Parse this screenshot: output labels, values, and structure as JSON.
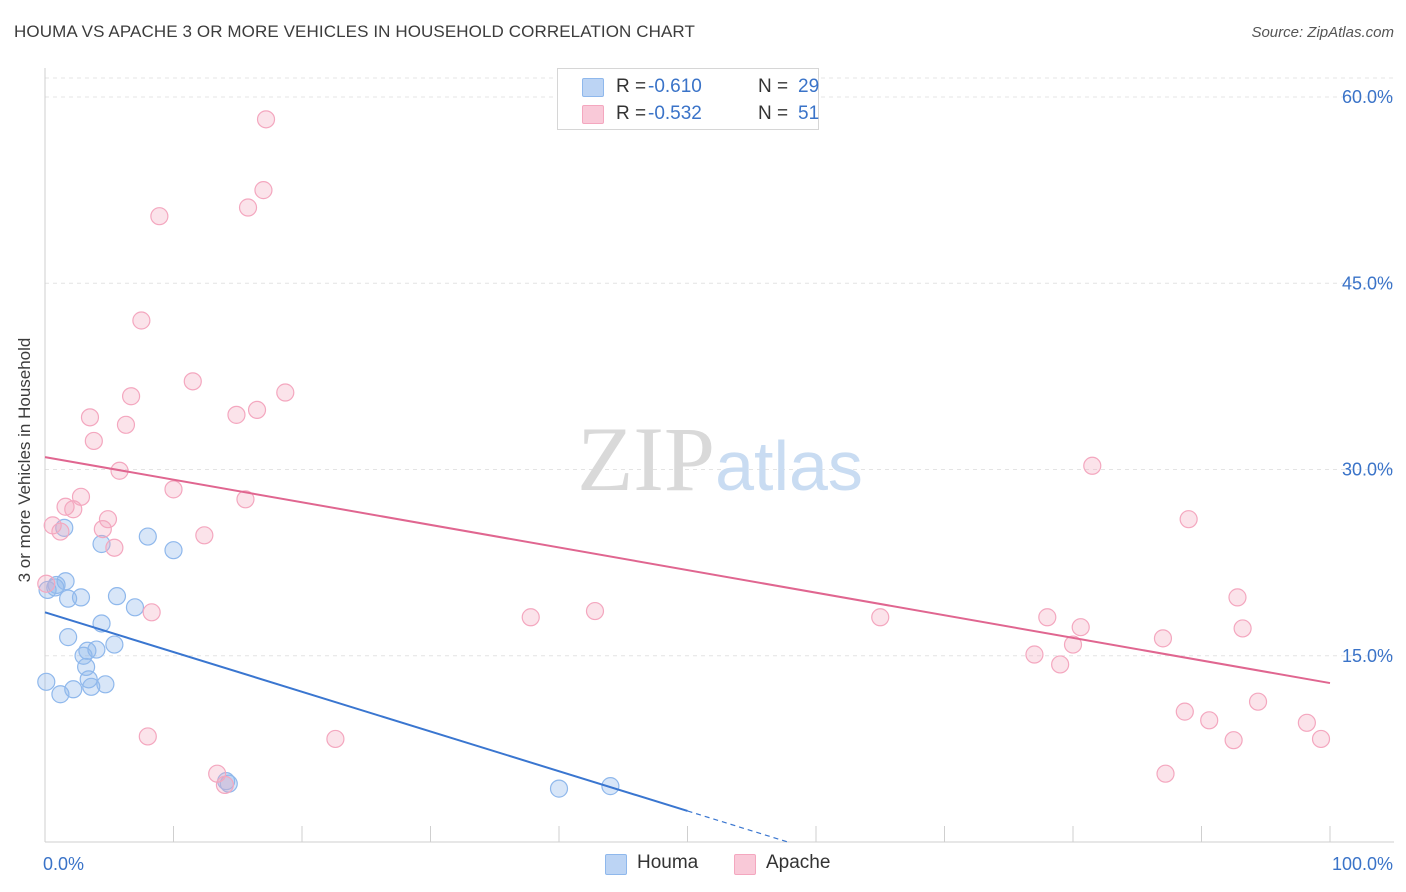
{
  "chart_data": {
    "type": "scatter",
    "title": "HOUMA VS APACHE 3 OR MORE VEHICLES IN HOUSEHOLD CORRELATION CHART",
    "source": "Source: ZipAtlas.com",
    "watermark": "ZIPatlas",
    "xlabel": "",
    "ylabel": "3 or more Vehicles in Household",
    "xlim": [
      0,
      100
    ],
    "ylim": [
      0,
      60
    ],
    "x_ticks_labels": [
      "0.0%",
      "100.0%"
    ],
    "y_ticks": [
      15,
      30,
      45,
      60
    ],
    "y_ticks_labels": [
      "15.0%",
      "30.0%",
      "45.0%",
      "60.0%"
    ],
    "grid": true,
    "legend_position": "top-center",
    "series": [
      {
        "name": "Houma",
        "color": "#8fb8ec",
        "line_color": "#3a76d0",
        "R": "-0.610",
        "N": "29",
        "regression": {
          "x0": 0,
          "y0": 18.5,
          "x1": 50,
          "y1": 2.5,
          "dashed_to_x": 58
        },
        "points": [
          [
            0.2,
            20.3
          ],
          [
            0.8,
            20.5
          ],
          [
            0.9,
            20.7
          ],
          [
            1.6,
            21.0
          ],
          [
            1.5,
            25.3
          ],
          [
            1.8,
            19.6
          ],
          [
            2.8,
            19.7
          ],
          [
            1.8,
            16.5
          ],
          [
            3.0,
            15.0
          ],
          [
            3.3,
            15.4
          ],
          [
            4.0,
            15.5
          ],
          [
            3.2,
            14.1
          ],
          [
            3.4,
            13.1
          ],
          [
            3.6,
            12.5
          ],
          [
            4.7,
            12.7
          ],
          [
            0.1,
            12.9
          ],
          [
            1.2,
            11.9
          ],
          [
            2.2,
            12.3
          ],
          [
            4.4,
            17.6
          ],
          [
            5.4,
            15.9
          ],
          [
            5.6,
            19.8
          ],
          [
            4.4,
            24.0
          ],
          [
            7.0,
            18.9
          ],
          [
            8.0,
            24.6
          ],
          [
            10.0,
            23.5
          ],
          [
            14.3,
            4.7
          ],
          [
            14.1,
            4.9
          ],
          [
            40.0,
            4.3
          ],
          [
            44.0,
            4.5
          ]
        ]
      },
      {
        "name": "Apache",
        "color": "#f4a7bf",
        "line_color": "#e06690",
        "R": "-0.532",
        "N": "51",
        "regression": {
          "x0": 0,
          "y0": 31.0,
          "x1": 100,
          "y1": 12.8
        },
        "points": [
          [
            0.1,
            20.8
          ],
          [
            0.6,
            25.5
          ],
          [
            1.2,
            25.0
          ],
          [
            1.6,
            27.0
          ],
          [
            2.2,
            26.8
          ],
          [
            2.8,
            27.8
          ],
          [
            3.5,
            34.2
          ],
          [
            3.8,
            32.3
          ],
          [
            4.5,
            25.2
          ],
          [
            4.9,
            26.0
          ],
          [
            5.4,
            23.7
          ],
          [
            5.8,
            29.9
          ],
          [
            6.3,
            33.6
          ],
          [
            6.7,
            35.9
          ],
          [
            7.5,
            42.0
          ],
          [
            8.0,
            8.5
          ],
          [
            8.3,
            18.5
          ],
          [
            8.9,
            50.4
          ],
          [
            10.0,
            28.4
          ],
          [
            11.5,
            37.1
          ],
          [
            12.4,
            24.7
          ],
          [
            13.4,
            5.5
          ],
          [
            14.0,
            4.6
          ],
          [
            14.9,
            34.4
          ],
          [
            15.6,
            27.6
          ],
          [
            15.8,
            51.1
          ],
          [
            16.5,
            34.8
          ],
          [
            17.0,
            52.5
          ],
          [
            17.2,
            58.2
          ],
          [
            18.7,
            36.2
          ],
          [
            22.6,
            8.3
          ],
          [
            37.8,
            18.1
          ],
          [
            42.8,
            18.6
          ],
          [
            65.0,
            18.1
          ],
          [
            77.0,
            15.1
          ],
          [
            78.0,
            18.1
          ],
          [
            79.0,
            14.3
          ],
          [
            80.0,
            15.9
          ],
          [
            80.6,
            17.3
          ],
          [
            81.5,
            30.3
          ],
          [
            87.0,
            16.4
          ],
          [
            87.2,
            5.5
          ],
          [
            88.7,
            10.5
          ],
          [
            89.0,
            26.0
          ],
          [
            90.6,
            9.8
          ],
          [
            92.5,
            8.2
          ],
          [
            92.8,
            19.7
          ],
          [
            93.2,
            17.2
          ],
          [
            94.4,
            11.3
          ],
          [
            98.2,
            9.6
          ],
          [
            99.3,
            8.3
          ]
        ]
      }
    ]
  }
}
